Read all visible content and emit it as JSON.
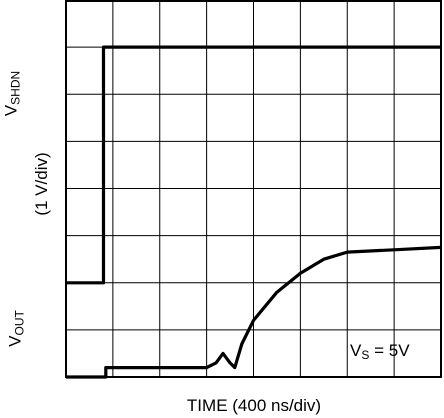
{
  "chart_data": {
    "type": "line",
    "xlabel": "TIME (400 ns/div)",
    "ylabel_unit": "(1 V/div)",
    "trace_labels": [
      {
        "base": "V",
        "sub": "SHDN"
      },
      {
        "base": "V",
        "sub": "OUT"
      }
    ],
    "note": {
      "base": "V",
      "sub": "S",
      "suffix": " = 5V"
    },
    "x_divisions": 8,
    "y_divisions": 8,
    "xlim": [
      0,
      8
    ],
    "ylim": [
      0,
      8
    ],
    "grid": true,
    "series": [
      {
        "points": [
          [
            0,
            2
          ],
          [
            0.8,
            2
          ],
          [
            0.8,
            7
          ],
          [
            8,
            7
          ]
        ]
      },
      {
        "points": [
          [
            0,
            0
          ],
          [
            0.85,
            0
          ],
          [
            0.85,
            0.2
          ],
          [
            3.0,
            0.2
          ],
          [
            3.2,
            0.3
          ],
          [
            3.35,
            0.5
          ],
          [
            3.5,
            0.3
          ],
          [
            3.6,
            0.2
          ],
          [
            3.75,
            0.7
          ],
          [
            4.0,
            1.2
          ],
          [
            4.5,
            1.8
          ],
          [
            5.0,
            2.2
          ],
          [
            5.5,
            2.5
          ],
          [
            6.0,
            2.65
          ],
          [
            7.0,
            2.7
          ],
          [
            8.0,
            2.75
          ]
        ]
      }
    ]
  }
}
